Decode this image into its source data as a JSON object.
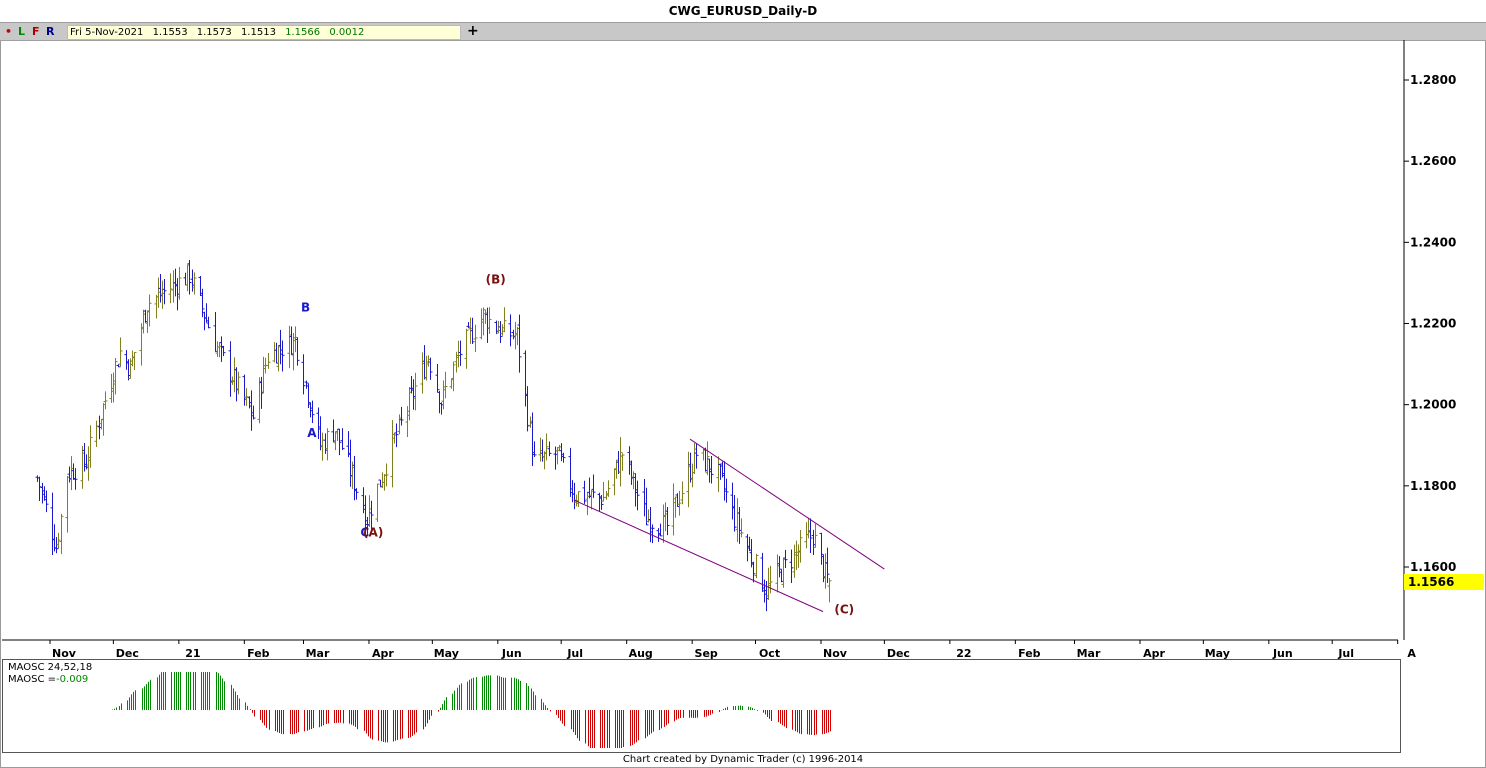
{
  "window": {
    "title": "CWG_EURUSD_Daily-D"
  },
  "toolbar": {
    "buttons": [
      {
        "label": "•",
        "color": "#cc0000"
      },
      {
        "label": "L",
        "color": "#008800"
      },
      {
        "label": "F",
        "color": "#aa0000"
      },
      {
        "label": "R",
        "color": "#000088"
      }
    ],
    "ohlc": {
      "date": "Fri 5-Nov-2021",
      "open": "1.1553",
      "high": "1.1573",
      "low": "1.1513",
      "close": "1.1566",
      "change": "0.0012"
    },
    "add_icon": "plus-icon"
  },
  "chart_data": {
    "type": "ohlc",
    "title": "CWG_EURUSD_Daily-D",
    "ylim": [
      1.145,
      1.29
    ],
    "y_ticks": [
      "1.2800",
      "1.2600",
      "1.2400",
      "1.2200",
      "1.2000",
      "1.1800",
      "1.1600"
    ],
    "last_price": "1.1566",
    "x_ticks": [
      "Nov",
      "Dec",
      "21",
      "Feb",
      "Mar",
      "Apr",
      "May",
      "Jun",
      "Jul",
      "Aug",
      "Sep",
      "Oct",
      "Nov",
      "Dec",
      "22",
      "Feb",
      "Mar",
      "Apr",
      "May",
      "Jun",
      "Jul",
      "A"
    ],
    "series_colors": {
      "up": "#808020",
      "down": "#1a1acc"
    },
    "price_path": [
      [
        "2020-10-26",
        1.182
      ],
      [
        "2020-11-04",
        1.165
      ],
      [
        "2020-11-09",
        1.183
      ],
      [
        "2020-11-18",
        1.186
      ],
      [
        "2020-12-04",
        1.213
      ],
      [
        "2020-12-09",
        1.209
      ],
      [
        "2020-12-17",
        1.225
      ],
      [
        "2021-01-06",
        1.232
      ],
      [
        "2021-01-19",
        1.214
      ],
      [
        "2021-02-05",
        1.197
      ],
      [
        "2021-02-12",
        1.212
      ],
      [
        "2021-02-25",
        1.216
      ],
      [
        "2021-03-09",
        1.19
      ],
      [
        "2021-03-16",
        1.194
      ],
      [
        "2021-03-31",
        1.172
      ],
      [
        "2021-04-12",
        1.19
      ],
      [
        "2021-04-29",
        1.212
      ],
      [
        "2021-05-05",
        1.201
      ],
      [
        "2021-05-14",
        1.213
      ],
      [
        "2021-05-25",
        1.222
      ],
      [
        "2021-06-03",
        1.218
      ],
      [
        "2021-06-10",
        1.217
      ],
      [
        "2021-06-18",
        1.186
      ],
      [
        "2021-06-29",
        1.188
      ],
      [
        "2021-07-07",
        1.178
      ],
      [
        "2021-07-21",
        1.177
      ],
      [
        "2021-07-30",
        1.188
      ],
      [
        "2021-08-10",
        1.172
      ],
      [
        "2021-08-20",
        1.17
      ],
      [
        "2021-09-03",
        1.188
      ],
      [
        "2021-09-14",
        1.182
      ],
      [
        "2021-09-21",
        1.172
      ],
      [
        "2021-10-06",
        1.154
      ],
      [
        "2021-10-13",
        1.159
      ],
      [
        "2021-10-28",
        1.168
      ],
      [
        "2021-11-03",
        1.158
      ],
      [
        "2021-11-05",
        1.1566
      ]
    ],
    "wave_labels": [
      {
        "text": "A",
        "date": "2021-03-05",
        "price": 1.192,
        "color": "#1a1acc"
      },
      {
        "text": "B",
        "date": "2021-03-02",
        "price": 1.223,
        "color": "#1a1acc"
      },
      {
        "text": "C",
        "date": "2021-03-30",
        "price": 1.1675,
        "color": "#1a1acc"
      },
      {
        "text": "(A)",
        "date": "2021-04-03",
        "price": 1.1675,
        "color": "#7a1010"
      },
      {
        "text": "(B)",
        "date": "2021-05-31",
        "price": 1.2299,
        "color": "#7a1010"
      },
      {
        "text": "(C)",
        "date": "2021-11-12",
        "price": 1.1485,
        "color": "#7a1010"
      }
    ],
    "channel_lines": [
      {
        "from": [
          "2021-08-31",
          1.1915
        ],
        "to": [
          "2021-12-01",
          1.1595
        ]
      },
      {
        "from": [
          "2021-07-07",
          1.1765
        ],
        "to": [
          "2021-11-02",
          1.149
        ]
      }
    ],
    "oscillator": {
      "name": "MAOSC 24,52,18",
      "value_label": "MAOSC =",
      "value": "-0.009",
      "colors": {
        "positive": "#008800",
        "negative": "#cc0000"
      }
    }
  },
  "footer": {
    "text": "Chart created by Dynamic Trader  (c) 1996-2014"
  }
}
